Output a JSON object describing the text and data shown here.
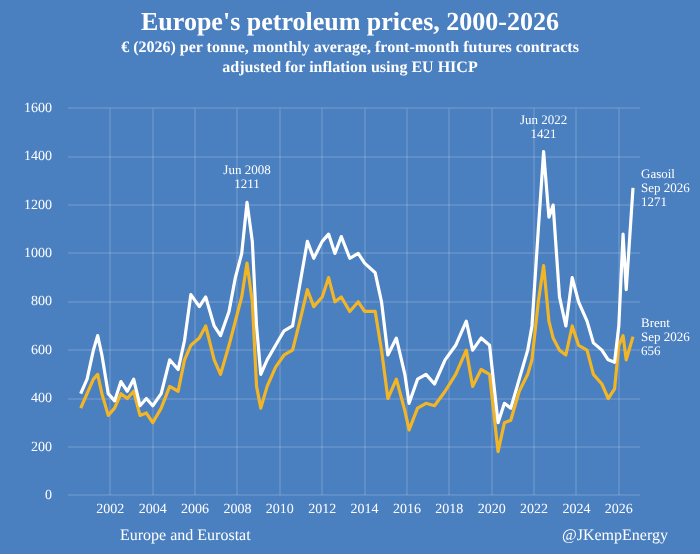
{
  "chart_data": {
    "type": "line",
    "title": "Europe's petroleum prices, 2000-2026",
    "subtitle": "€ (2026) per tonne, monthly average, front-month futures contracts adjusted for inflation using EU HICP",
    "x": [
      2000.6,
      2000.9,
      2001.2,
      2001.4,
      2001.6,
      2001.9,
      2002.2,
      2002.5,
      2002.8,
      2003.1,
      2003.4,
      2003.7,
      2004.0,
      2004.4,
      2004.8,
      2005.2,
      2005.5,
      2005.8,
      2006.2,
      2006.5,
      2006.9,
      2007.2,
      2007.6,
      2007.9,
      2008.2,
      2008.45,
      2008.7,
      2008.9,
      2009.1,
      2009.4,
      2009.8,
      2010.2,
      2010.6,
      2011.0,
      2011.3,
      2011.6,
      2012.0,
      2012.3,
      2012.6,
      2012.9,
      2013.3,
      2013.7,
      2014.0,
      2014.5,
      2014.8,
      2015.1,
      2015.5,
      2015.9,
      2016.1,
      2016.5,
      2016.9,
      2017.3,
      2017.8,
      2018.3,
      2018.8,
      2019.1,
      2019.5,
      2019.9,
      2020.3,
      2020.6,
      2020.9,
      2021.3,
      2021.7,
      2021.9,
      2022.2,
      2022.45,
      2022.7,
      2022.9,
      2023.2,
      2023.5,
      2023.8,
      2024.1,
      2024.5,
      2024.8,
      2025.2,
      2025.5,
      2025.8,
      2026.0,
      2026.2,
      2026.35,
      2026.67
    ],
    "series": [
      {
        "color": "#ffffff",
        "values": [
          420,
          480,
          600,
          660,
          580,
          420,
          390,
          470,
          430,
          480,
          370,
          400,
          370,
          420,
          560,
          520,
          640,
          830,
          780,
          820,
          700,
          660,
          760,
          900,
          1000,
          1211,
          1050,
          700,
          500,
          560,
          620,
          680,
          700,
          900,
          1050,
          980,
          1050,
          1080,
          1000,
          1070,
          980,
          1000,
          960,
          920,
          800,
          580,
          650,
          500,
          380,
          480,
          500,
          460,
          560,
          620,
          720,
          600,
          650,
          620,
          300,
          380,
          360,
          480,
          600,
          700,
          1100,
          1421,
          1150,
          1200,
          820,
          700,
          900,
          800,
          720,
          630,
          600,
          560,
          550,
          700,
          1080,
          850,
          1271
        ]
      },
      {
        "color": "#f2b526",
        "values": [
          360,
          420,
          480,
          500,
          420,
          330,
          360,
          420,
          400,
          430,
          330,
          340,
          300,
          360,
          450,
          430,
          560,
          620,
          650,
          700,
          560,
          500,
          620,
          720,
          820,
          960,
          800,
          450,
          360,
          450,
          530,
          580,
          600,
          740,
          850,
          780,
          820,
          900,
          800,
          820,
          760,
          800,
          760,
          760,
          600,
          400,
          480,
          350,
          270,
          360,
          380,
          370,
          430,
          500,
          600,
          450,
          520,
          500,
          180,
          300,
          310,
          430,
          500,
          560,
          800,
          950,
          720,
          650,
          600,
          580,
          700,
          620,
          600,
          500,
          460,
          400,
          440,
          620,
          660,
          560,
          656
        ]
      }
    ],
    "xlim": [
      2000,
      2027
    ],
    "xticks": [
      2002,
      2004,
      2006,
      2008,
      2010,
      2012,
      2014,
      2016,
      2018,
      2020,
      2022,
      2024,
      2026
    ],
    "ylim": [
      0,
      1600
    ],
    "yticks": [
      0,
      200,
      400,
      600,
      800,
      1000,
      1200,
      1400,
      1600
    ],
    "grid": true,
    "legend": false,
    "marker": "none",
    "line_style": "solid",
    "annotations": [
      {
        "text": "Jun 2008\n1211",
        "x": 2008.45,
        "y": 1211
      },
      {
        "text": "Jun 2022\n1421",
        "x": 2022.45,
        "y": 1421
      },
      {
        "text": "Gasoil\nSep 2026\n1271",
        "x": 2026.67,
        "y": 1271
      },
      {
        "text": "Brent\nSep 2026\n656",
        "x": 2026.67,
        "y": 656
      },
      "Europe and Eurostat",
      "@JKempEnergy"
    ]
  }
}
